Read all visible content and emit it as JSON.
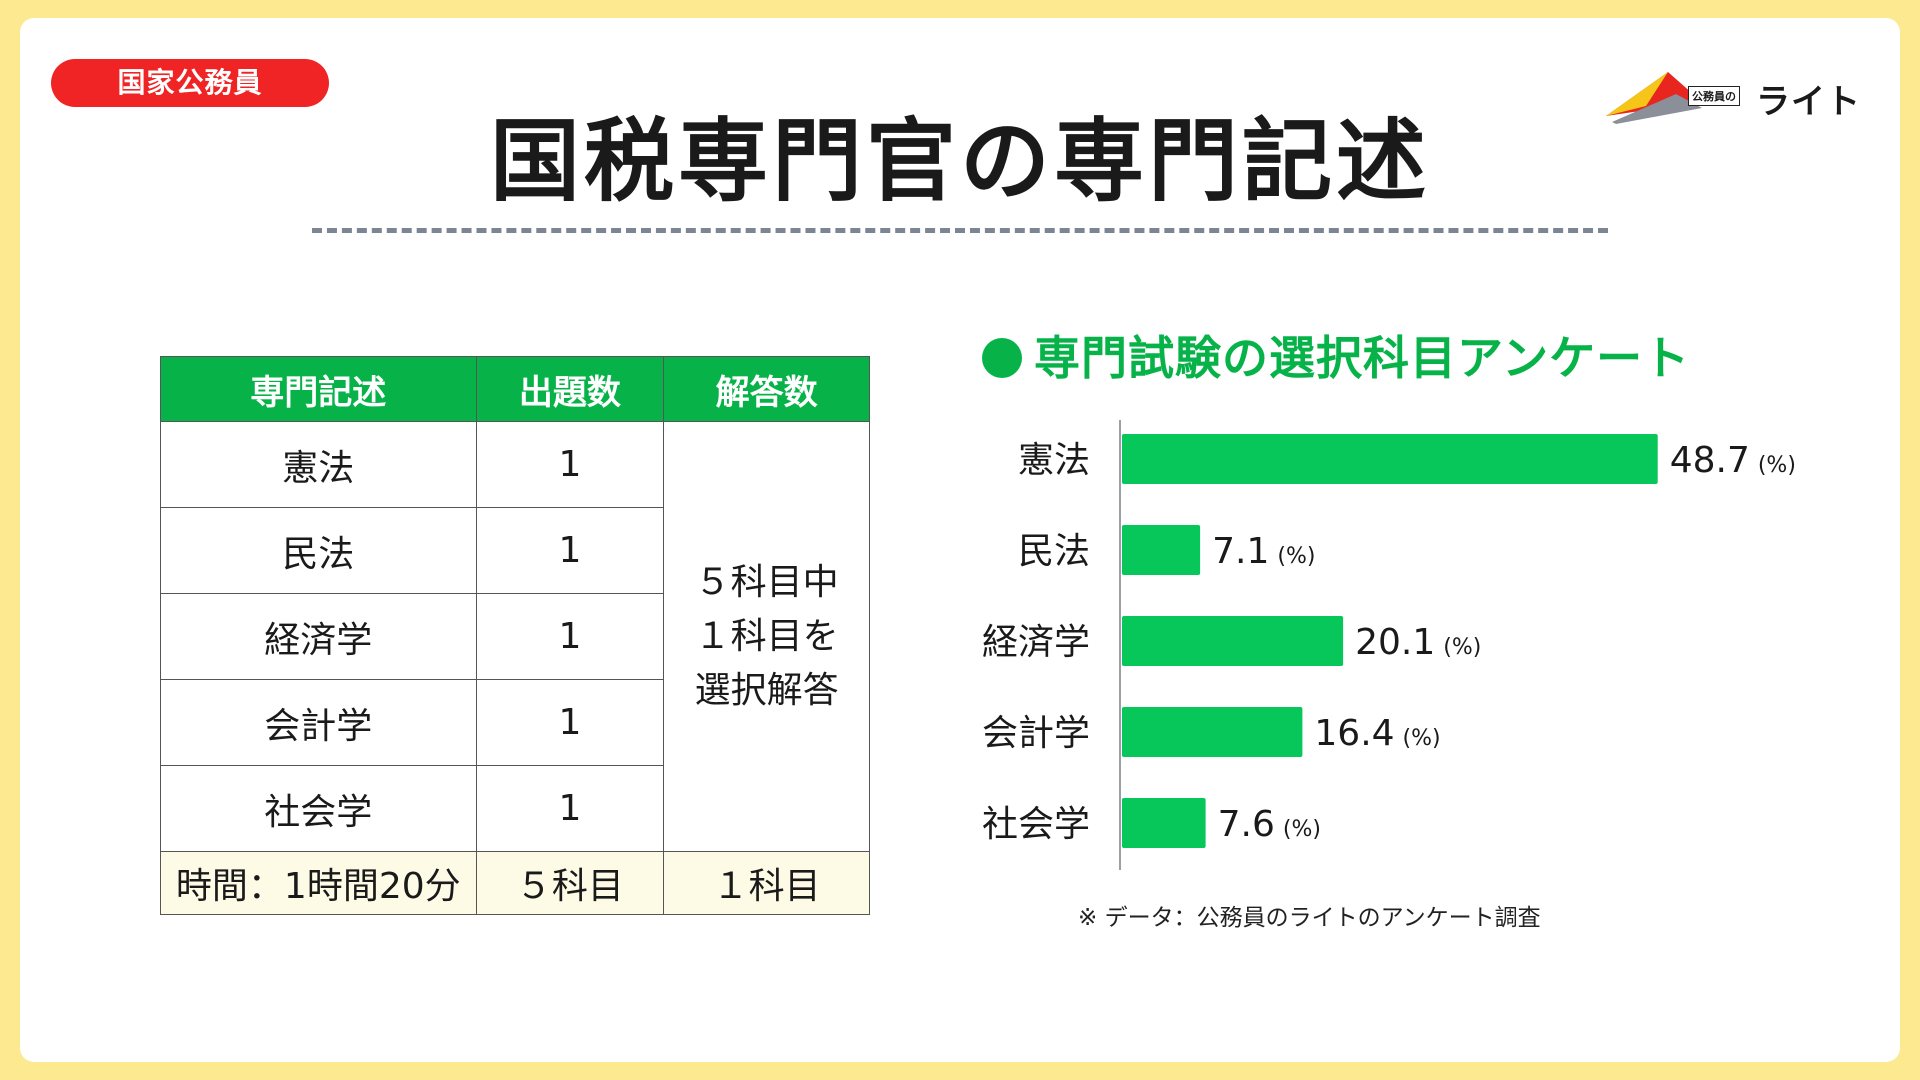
{
  "badge": "国家公務員",
  "logo": {
    "small_text": "公務員の",
    "big_text": "ライト"
  },
  "title": "国税専門官の専門記述",
  "table": {
    "headers": [
      "専門記述",
      "出題数",
      "解答数"
    ],
    "rows": [
      {
        "subject": "憲法",
        "count": "1"
      },
      {
        "subject": "民法",
        "count": "1"
      },
      {
        "subject": "経済学",
        "count": "1"
      },
      {
        "subject": "会計学",
        "count": "1"
      },
      {
        "subject": "社会学",
        "count": "1"
      }
    ],
    "answer_lines": [
      "５科目中",
      "１科目を",
      "選択解答"
    ],
    "footer": [
      "時間：1時間20分",
      "５科目",
      "１科目"
    ]
  },
  "chart_data": {
    "type": "bar",
    "orientation": "horizontal",
    "title": "専門試験の選択科目アンケート",
    "categories": [
      "憲法",
      "民法",
      "経済学",
      "会計学",
      "社会学"
    ],
    "values": [
      48.7,
      7.1,
      20.1,
      16.4,
      7.6
    ],
    "unit_label": "(%)",
    "xlim": [
      0,
      60
    ],
    "grid": false,
    "bar_color": "#07c65a"
  },
  "note": "※ データ：公務員のライトのアンケート調査"
}
